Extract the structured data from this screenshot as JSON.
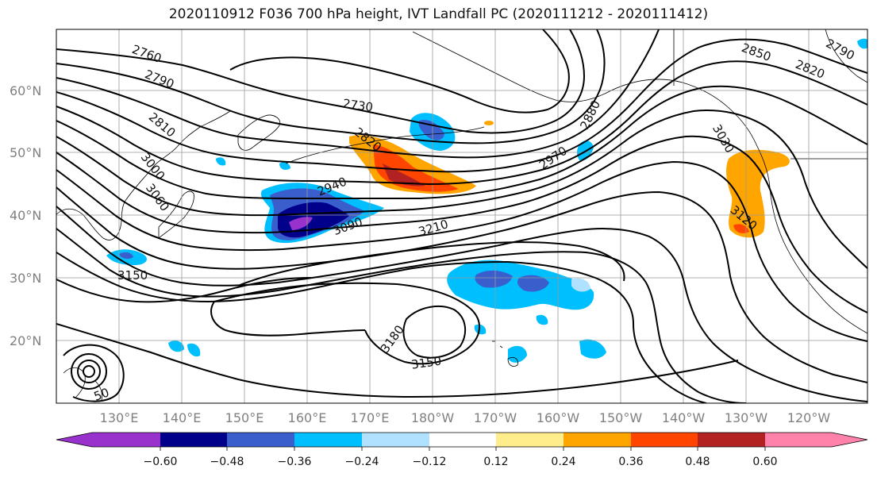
{
  "title": "2020110912 F036 700 hPa height, IVT Landfall PC (2020111212 - 2020111412)",
  "lat_labels": [
    "60°N",
    "50°N",
    "40°N",
    "30°N",
    "20°N"
  ],
  "lon_labels": [
    "130°E",
    "140°E",
    "150°E",
    "160°E",
    "170°E",
    "180°W",
    "170°W",
    "160°W",
    "150°W",
    "140°W",
    "130°W",
    "120°W"
  ],
  "contour_labels": [
    "2760",
    "2790",
    "2730",
    "2810",
    "2820",
    "2850",
    "2790",
    "2820",
    "2880",
    "2970",
    "3030",
    "2940",
    "3000",
    "3060",
    "3090",
    "3210",
    "3120",
    "3150",
    "3180",
    "3150",
    "50",
    "3150",
    "2900"
  ],
  "colorbar": {
    "tick_labels": [
      "−0.60",
      "−0.48",
      "−0.36",
      "−0.24",
      "−0.12",
      "0.12",
      "0.24",
      "0.36",
      "0.48",
      "0.60"
    ],
    "colors": [
      "#9932cc",
      "#00008b",
      "#3a5fcd",
      "#00bfff",
      "#b0e2ff",
      "#ffffff",
      "#ffec8b",
      "#ffa500",
      "#ff4500",
      "#b22222",
      "#ff82ab"
    ]
  },
  "colors": {
    "contour": "#000000",
    "coast": "#000000",
    "grid": "#999999"
  }
}
